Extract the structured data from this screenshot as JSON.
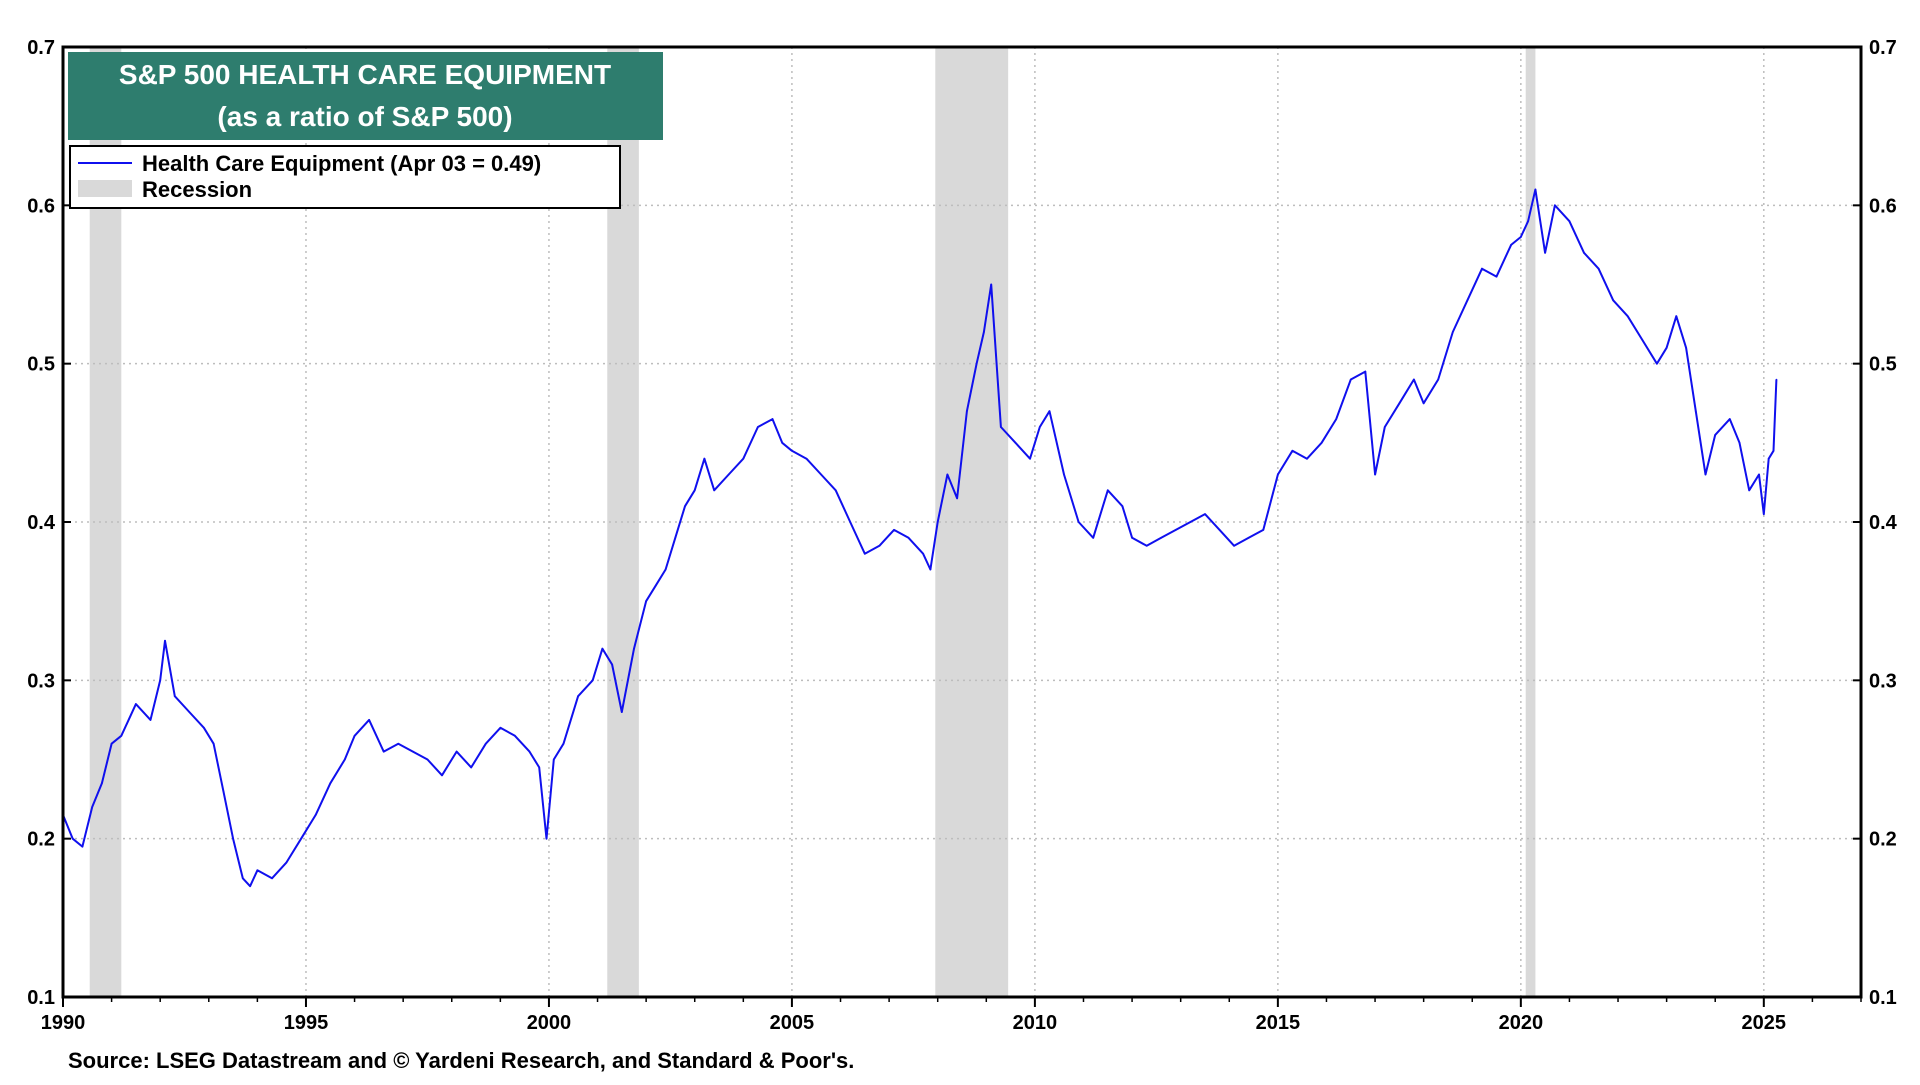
{
  "colors": {
    "series": "#1010ee",
    "recession": "#d9d9d9",
    "title_bg": "#2e7d6e",
    "title_text": "#ffffff",
    "grid": "#bdbdbd",
    "axis": "#000000"
  },
  "source": "Source: LSEG Datastream and © Yardeni Research, and Standard & Poor's.",
  "chart_data": {
    "type": "line",
    "title": "S&P 500 HEALTH CARE EQUIPMENT",
    "subtitle": "(as a ratio of S&P 500)",
    "xlabel": "",
    "ylabel": "",
    "xlim": [
      1990,
      2027
    ],
    "ylim": [
      0.1,
      0.7
    ],
    "x_ticks": [
      1990,
      1995,
      2000,
      2005,
      2010,
      2015,
      2020,
      2025
    ],
    "x_tick_labels": [
      "1990",
      "1995",
      "2000",
      "2005",
      "2010",
      "2015",
      "2020",
      "2025"
    ],
    "y_ticks": [
      0.1,
      0.2,
      0.3,
      0.4,
      0.5,
      0.6,
      0.7
    ],
    "y_tick_labels": [
      "0.1",
      "0.2",
      "0.3",
      "0.4",
      "0.5",
      "0.6",
      "0.7"
    ],
    "grid": true,
    "legend": {
      "placement": "top-left",
      "entries": [
        {
          "label": "Health Care Equipment (Apr 03 = 0.49)",
          "kind": "line"
        },
        {
          "label": "Recession",
          "kind": "band"
        }
      ]
    },
    "recessions": [
      {
        "start": 1990.55,
        "end": 1991.2
      },
      {
        "start": 2001.2,
        "end": 2001.85
      },
      {
        "start": 2007.95,
        "end": 2009.45
      },
      {
        "start": 2020.1,
        "end": 2020.3
      }
    ],
    "series": [
      {
        "name": "Health Care Equipment",
        "last_value_label": "Apr 03 = 0.49",
        "x": [
          1990.0,
          1990.2,
          1990.4,
          1990.6,
          1990.8,
          1991.0,
          1991.2,
          1991.5,
          1991.8,
          1992.0,
          1992.1,
          1992.3,
          1992.6,
          1992.9,
          1993.1,
          1993.3,
          1993.5,
          1993.7,
          1993.85,
          1994.0,
          1994.3,
          1994.6,
          1994.9,
          1995.2,
          1995.5,
          1995.8,
          1996.0,
          1996.3,
          1996.6,
          1996.9,
          1997.2,
          1997.5,
          1997.8,
          1998.1,
          1998.4,
          1998.7,
          1999.0,
          1999.3,
          1999.6,
          1999.8,
          1999.95,
          2000.1,
          2000.3,
          2000.6,
          2000.9,
          2001.1,
          2001.3,
          2001.5,
          2001.75,
          2002.0,
          2002.2,
          2002.4,
          2002.6,
          2002.8,
          2003.0,
          2003.2,
          2003.4,
          2003.7,
          2004.0,
          2004.3,
          2004.6,
          2004.8,
          2005.0,
          2005.3,
          2005.6,
          2005.9,
          2006.2,
          2006.5,
          2006.8,
          2007.1,
          2007.4,
          2007.7,
          2007.85,
          2008.0,
          2008.2,
          2008.4,
          2008.6,
          2008.8,
          2008.95,
          2009.1,
          2009.3,
          2009.6,
          2009.9,
          2010.1,
          2010.3,
          2010.6,
          2010.9,
          2011.2,
          2011.5,
          2011.8,
          2012.0,
          2012.3,
          2012.6,
          2012.9,
          2013.2,
          2013.5,
          2013.8,
          2014.1,
          2014.4,
          2014.7,
          2015.0,
          2015.3,
          2015.6,
          2015.9,
          2016.2,
          2016.5,
          2016.8,
          2017.0,
          2017.2,
          2017.5,
          2017.8,
          2018.0,
          2018.3,
          2018.6,
          2018.9,
          2019.2,
          2019.5,
          2019.8,
          2020.0,
          2020.15,
          2020.3,
          2020.5,
          2020.7,
          2021.0,
          2021.3,
          2021.6,
          2021.9,
          2022.2,
          2022.5,
          2022.8,
          2023.0,
          2023.2,
          2023.4,
          2023.6,
          2023.8,
          2024.0,
          2024.3,
          2024.5,
          2024.7,
          2024.9,
          2025.0,
          2025.1,
          2025.2,
          2025.26
        ],
        "values": [
          0.215,
          0.2,
          0.195,
          0.22,
          0.235,
          0.26,
          0.265,
          0.285,
          0.275,
          0.3,
          0.325,
          0.29,
          0.28,
          0.27,
          0.26,
          0.23,
          0.2,
          0.175,
          0.17,
          0.18,
          0.175,
          0.185,
          0.2,
          0.215,
          0.235,
          0.25,
          0.265,
          0.275,
          0.255,
          0.26,
          0.255,
          0.25,
          0.24,
          0.255,
          0.245,
          0.26,
          0.27,
          0.265,
          0.255,
          0.245,
          0.2,
          0.25,
          0.26,
          0.29,
          0.3,
          0.32,
          0.31,
          0.28,
          0.32,
          0.35,
          0.36,
          0.37,
          0.39,
          0.41,
          0.42,
          0.44,
          0.42,
          0.43,
          0.44,
          0.46,
          0.465,
          0.45,
          0.445,
          0.44,
          0.43,
          0.42,
          0.4,
          0.38,
          0.385,
          0.395,
          0.39,
          0.38,
          0.37,
          0.4,
          0.43,
          0.415,
          0.47,
          0.5,
          0.52,
          0.55,
          0.46,
          0.45,
          0.44,
          0.46,
          0.47,
          0.43,
          0.4,
          0.39,
          0.42,
          0.41,
          0.39,
          0.385,
          0.39,
          0.395,
          0.4,
          0.405,
          0.395,
          0.385,
          0.39,
          0.395,
          0.43,
          0.445,
          0.44,
          0.45,
          0.465,
          0.49,
          0.495,
          0.43,
          0.46,
          0.475,
          0.49,
          0.475,
          0.49,
          0.52,
          0.54,
          0.56,
          0.555,
          0.575,
          0.58,
          0.59,
          0.61,
          0.57,
          0.6,
          0.59,
          0.57,
          0.56,
          0.54,
          0.53,
          0.515,
          0.5,
          0.51,
          0.53,
          0.51,
          0.47,
          0.43,
          0.455,
          0.465,
          0.45,
          0.42,
          0.43,
          0.405,
          0.44,
          0.445,
          0.49
        ]
      }
    ]
  }
}
